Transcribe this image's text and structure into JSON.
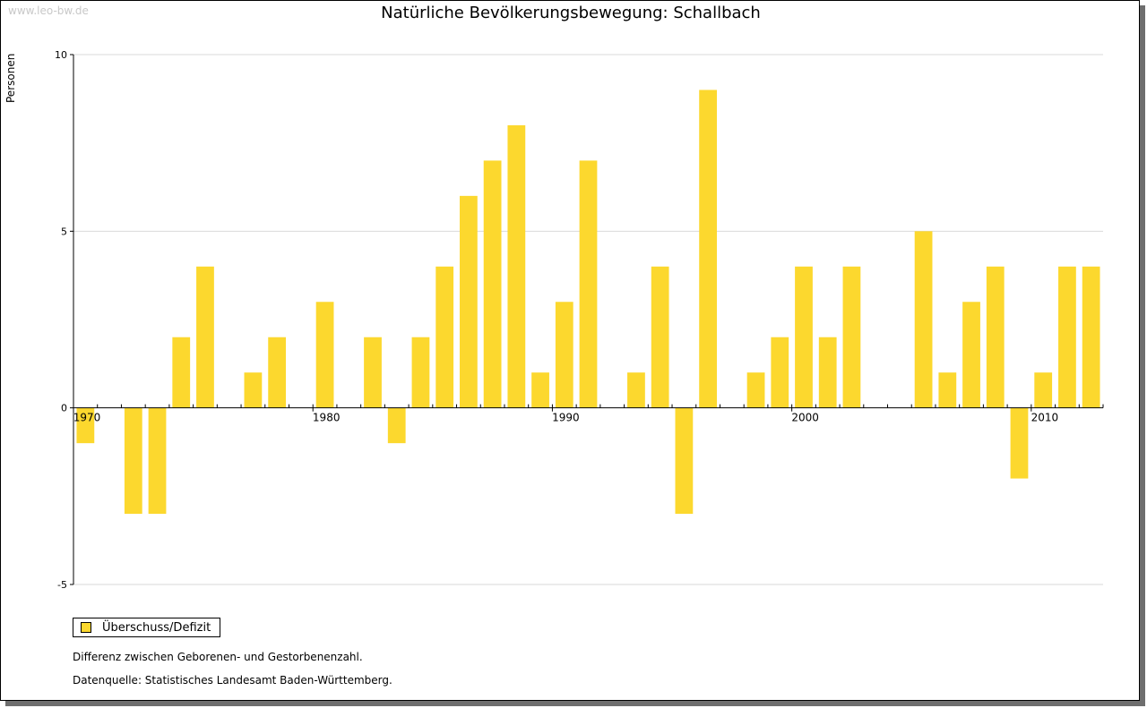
{
  "watermark": "www.leo-bw.de",
  "chart_data": {
    "type": "bar",
    "title": "Natürliche Bevölkerungsbewegung: Schallbach",
    "ylabel": "Personen",
    "xlabel": "",
    "ylim": [
      -5,
      10
    ],
    "yticks": [
      "-5",
      "0",
      "5",
      "10"
    ],
    "xticks": [
      "1970",
      "1980",
      "1990",
      "2000",
      "2010"
    ],
    "grid": true,
    "legend_position": "bottom-left",
    "color": "#fcd82e",
    "categories": [
      1970,
      1971,
      1972,
      1973,
      1974,
      1975,
      1976,
      1977,
      1978,
      1979,
      1980,
      1981,
      1982,
      1983,
      1984,
      1985,
      1986,
      1987,
      1988,
      1989,
      1990,
      1991,
      1992,
      1993,
      1994,
      1995,
      1996,
      1997,
      1998,
      1999,
      2000,
      2001,
      2002,
      2003,
      2004,
      2005,
      2006,
      2007,
      2008,
      2009,
      2010,
      2011,
      2012
    ],
    "series": [
      {
        "name": "Überschuss/Defizit",
        "values": [
          -1,
          0,
          -3,
          -3,
          2,
          4,
          0,
          1,
          2,
          0,
          3,
          0,
          2,
          -1,
          2,
          4,
          6,
          7,
          8,
          1,
          3,
          7,
          0,
          1,
          4,
          -3,
          9,
          0,
          1,
          2,
          4,
          2,
          4,
          0,
          0,
          5,
          1,
          3,
          4,
          -2,
          1,
          4,
          4
        ]
      }
    ]
  },
  "notes": [
    "Differenz zwischen Geborenen- und Gestorbenenzahl.",
    "Datenquelle: Statistisches Landesamt Baden-Württemberg."
  ]
}
